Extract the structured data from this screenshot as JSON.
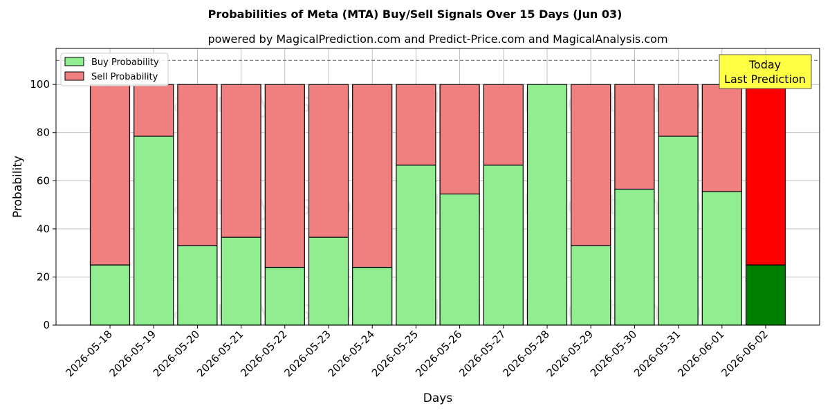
{
  "chart_data": {
    "type": "bar",
    "title": "Probabilities of Meta (MTA) Buy/Sell Signals Over 15 Days (Jun 03)",
    "subtitle": "powered by MagicalPrediction.com and Predict-Price.com and MagicalAnalysis.com",
    "xlabel": "Days",
    "ylabel": "Probability",
    "ylim": [
      0,
      115
    ],
    "yticks": [
      0,
      20,
      40,
      60,
      80,
      100
    ],
    "reference_line": 110,
    "grid": true,
    "legend_position": "top-left",
    "categories": [
      "2026-05-18",
      "2026-05-19",
      "2026-05-20",
      "2026-05-21",
      "2026-05-22",
      "2026-05-23",
      "2026-05-24",
      "2026-05-25",
      "2026-05-26",
      "2026-05-27",
      "2026-05-28",
      "2026-05-29",
      "2026-05-30",
      "2026-05-31",
      "2026-06-01",
      "2026-06-02"
    ],
    "series": [
      {
        "name": "Buy Probability",
        "color": "#90ee90",
        "values": [
          25,
          78.5,
          33,
          36.5,
          24,
          36.5,
          24,
          66.5,
          54.5,
          66.5,
          100,
          33,
          56.5,
          78.5,
          55.5,
          25
        ]
      },
      {
        "name": "Sell Probability",
        "color": "#f08080",
        "values": [
          75,
          21.5,
          67,
          63.5,
          76,
          63.5,
          76,
          33.5,
          45.5,
          33.5,
          0,
          67,
          43.5,
          21.5,
          44.5,
          75
        ]
      }
    ],
    "highlight": {
      "index": 15,
      "buy_color": "#008000",
      "sell_color": "#ff0000"
    },
    "annotation": {
      "lines": [
        "Today",
        "Last Prediction"
      ],
      "color": "#ffff44"
    },
    "watermarks": [
      "MagicalAnalysis.com",
      "MagicalPrediction.com"
    ]
  }
}
